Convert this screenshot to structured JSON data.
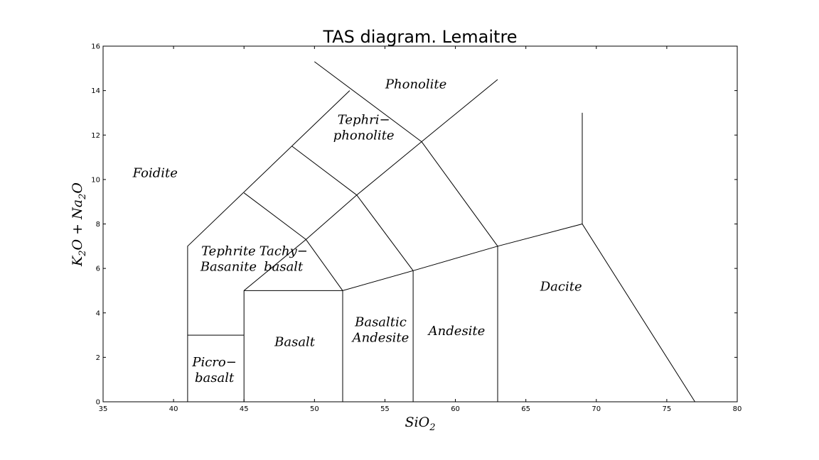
{
  "chart_data": {
    "type": "diagram",
    "title": "TAS diagram. Lemaitre",
    "xlabel": {
      "base": "SiO",
      "sub": "2"
    },
    "ylabel": {
      "parts": [
        "K",
        "2",
        "O + Na",
        "2",
        "O"
      ]
    },
    "xlim": [
      35,
      80
    ],
    "ylim": [
      0,
      16
    ],
    "x_ticks": [
      35,
      40,
      45,
      50,
      55,
      60,
      65,
      70,
      75,
      80
    ],
    "y_ticks": [
      0,
      2,
      4,
      6,
      8,
      10,
      12,
      14,
      16
    ],
    "grid": false,
    "boundaries": [
      [
        [
          41,
          0
        ],
        [
          41,
          7
        ],
        [
          52.5,
          14
        ]
      ],
      [
        [
          45,
          0
        ],
        [
          45,
          5
        ],
        [
          49.4,
          7.3
        ],
        [
          53,
          9.3
        ],
        [
          57.6,
          11.7
        ],
        [
          63,
          14.5
        ]
      ],
      [
        [
          52,
          0
        ],
        [
          52,
          5
        ],
        [
          57,
          5.9
        ],
        [
          63,
          7
        ],
        [
          69,
          8
        ],
        [
          77,
          0
        ]
      ],
      [
        [
          57,
          0
        ],
        [
          57,
          5.9
        ]
      ],
      [
        [
          63,
          0
        ],
        [
          63,
          7
        ]
      ],
      [
        [
          41,
          3
        ],
        [
          45,
          3
        ]
      ],
      [
        [
          45,
          5
        ],
        [
          52,
          5
        ]
      ],
      [
        [
          49.4,
          7.3
        ],
        [
          52,
          5
        ]
      ],
      [
        [
          53,
          9.3
        ],
        [
          57,
          5.9
        ]
      ],
      [
        [
          57.6,
          11.7
        ],
        [
          63,
          7
        ]
      ],
      [
        [
          48.4,
          11.5
        ],
        [
          53,
          9.3
        ]
      ],
      [
        [
          45,
          9.4
        ],
        [
          49.4,
          7.3
        ]
      ],
      [
        [
          50,
          15.3
        ],
        [
          57.6,
          11.7
        ]
      ],
      [
        [
          69,
          8
        ],
        [
          69,
          13
        ]
      ]
    ],
    "field_labels": [
      {
        "lines": [
          "Foidite"
        ],
        "x": 38.7,
        "y": 10.1
      },
      {
        "lines": [
          "Phonolite"
        ],
        "x": 57.2,
        "y": 14.1
      },
      {
        "lines": [
          "Tephri−",
          "phonolite"
        ],
        "x": 53.5,
        "y": 12.5
      },
      {
        "lines": [
          "Tephrite",
          "Basanite"
        ],
        "x": 43.9,
        "y": 6.6
      },
      {
        "lines": [
          "Tachy−",
          "basalt"
        ],
        "x": 47.8,
        "y": 6.6
      },
      {
        "lines": [
          "Basalt"
        ],
        "x": 48.6,
        "y": 2.5
      },
      {
        "lines": [
          "Picro−",
          "basalt"
        ],
        "x": 42.9,
        "y": 1.6
      },
      {
        "lines": [
          "Basaltic",
          "Andesite"
        ],
        "x": 54.7,
        "y": 3.4
      },
      {
        "lines": [
          "Andesite"
        ],
        "x": 60.1,
        "y": 3.0
      },
      {
        "lines": [
          "Dacite"
        ],
        "x": 67.5,
        "y": 5.0
      }
    ]
  }
}
